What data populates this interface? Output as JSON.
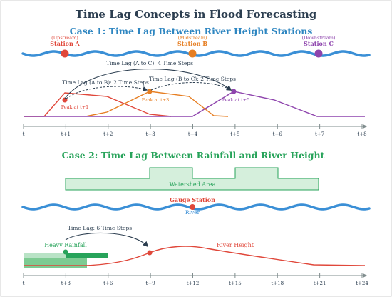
{
  "title": "Time Lag Concepts in Flood Forecasting",
  "colors": {
    "river": "#3a8fd6",
    "red": "#e0473a",
    "orange": "#e67e22",
    "purple": "#8e44ad",
    "green": "#27a35a",
    "blue_heading": "#2e86c1",
    "green_heading": "#27a35a",
    "axis": "#7f8c8d"
  },
  "case1": {
    "heading": "Case 1: Time Lag Between River Height Stations",
    "stations": [
      {
        "role": "(Upstream)",
        "name": "Station A",
        "color": "#e0473a"
      },
      {
        "role": "(Midstream)",
        "name": "Station B",
        "color": "#e67e22"
      },
      {
        "role": "(Downstream)",
        "name": "Station C",
        "color": "#8e44ad"
      }
    ],
    "lags": {
      "a_to_c": "Time Lag (A to C): 4 Time Steps",
      "a_to_b": "Time Lag (A to B): 2 Time Steps",
      "b_to_c": "Time Lag (B to C): 2 Time Steps"
    },
    "peaks": {
      "a": "Peak at t+1",
      "b": "Peak at t+3",
      "c": "Peak at t+5"
    },
    "ticks": [
      "t",
      "t+1",
      "t+2",
      "t+3",
      "t+4",
      "t+5",
      "t+6",
      "t+7",
      "t+8"
    ]
  },
  "case2": {
    "heading": "Case 2: Time Lag Between Rainfall and River Height",
    "watershed_label": "Watershed Area",
    "gauge_label": "Gauge Station",
    "river_label": "River",
    "lag_label": "Time Lag: 6 Time Steps",
    "rainfall_label": "Heavy Rainfall",
    "river_height_label": "River Height",
    "ticks": [
      "t",
      "t+3",
      "t+6",
      "t+9",
      "t+12",
      "t+15",
      "t+18",
      "t+21",
      "t+24"
    ]
  }
}
